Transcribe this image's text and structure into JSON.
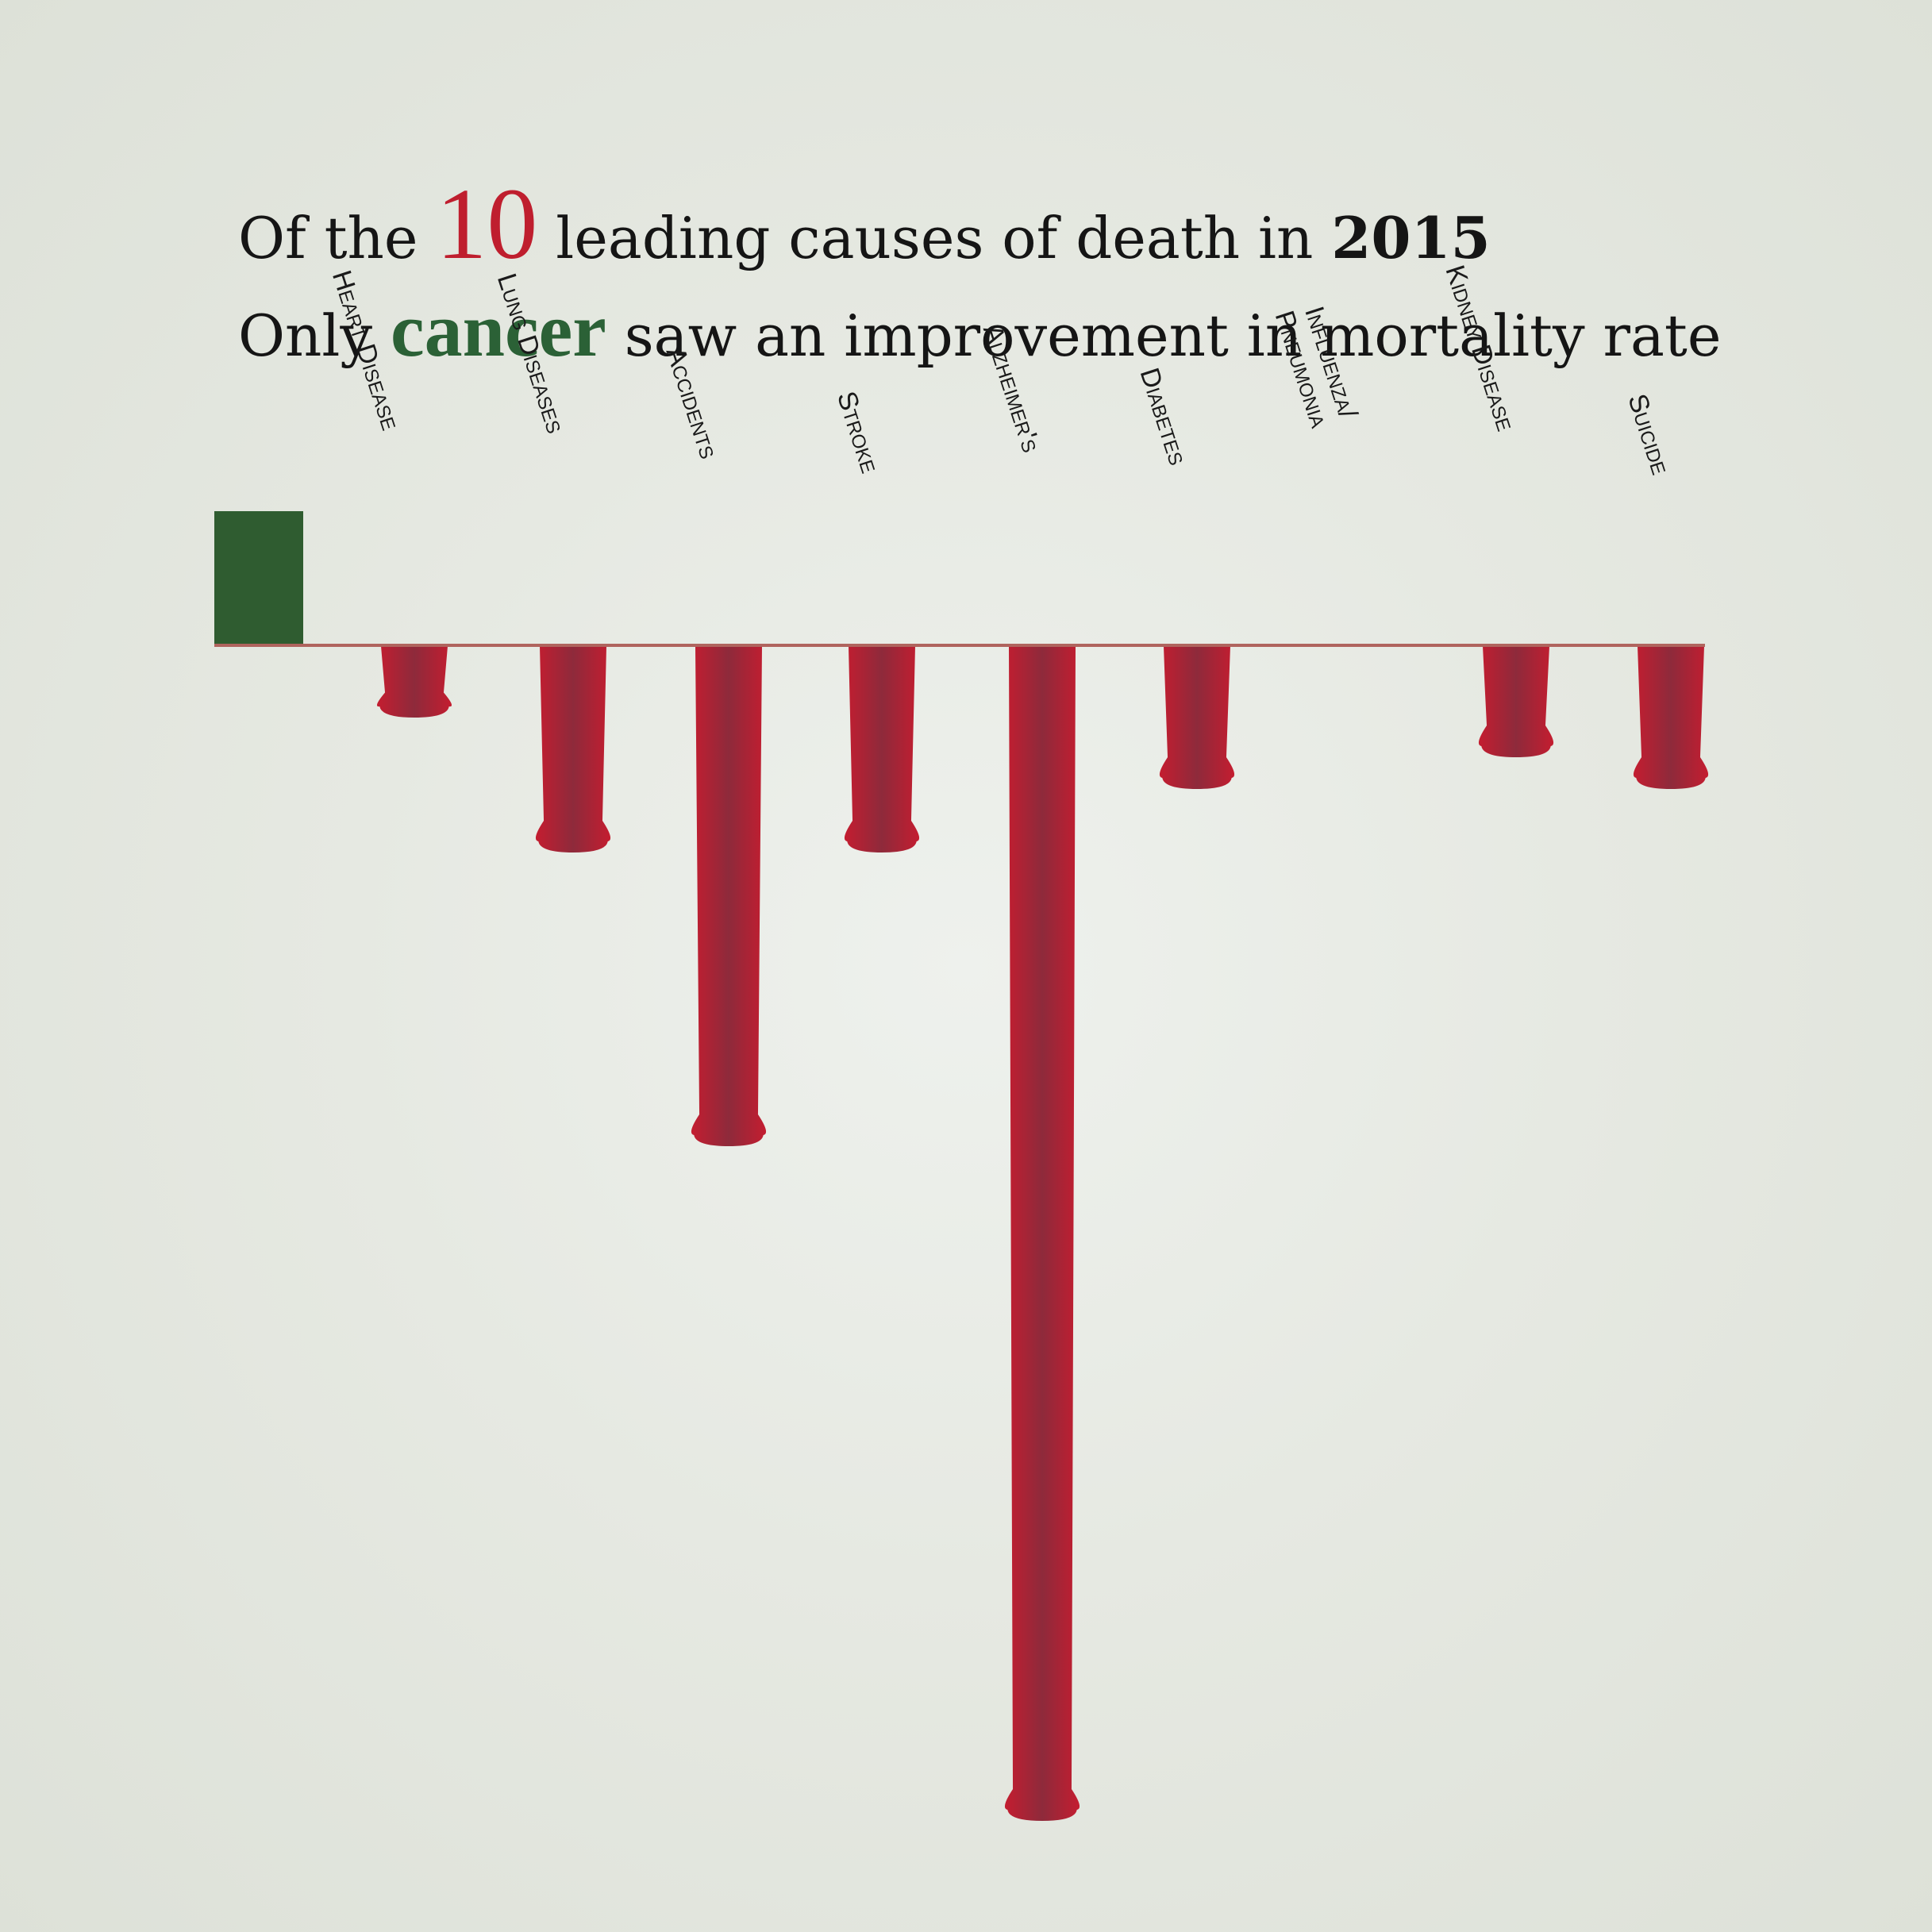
{
  "headline": {
    "line1": {
      "before": "Of the",
      "number": "10",
      "middle": "leading causes of death in",
      "year": "2015"
    },
    "line2": {
      "before": "Only",
      "highlight": "cancer",
      "after": "saw an improvement in mortality rate"
    }
  },
  "colors": {
    "decrease": "#2f5c30",
    "increase": "#bd1c2e",
    "increase_shade": "#8e2a3b",
    "highlight_red": "#bf1e2e",
    "highlight_green": "#2b6136"
  },
  "chart_data": {
    "type": "bar",
    "orientation": "vertical",
    "title": "",
    "xlabel": "",
    "ylabel": "",
    "axis_labels_shown": false,
    "categories": [
      "",
      "Heart Disease",
      "Lung Diseases",
      "Accidents",
      "Stroke",
      "Alzheimer's",
      "Diabetes",
      "Influenza/ Pneumonia",
      "Kidney Disease",
      "Suicide"
    ],
    "values": [
      -1.7,
      0.9,
      2.6,
      6.3,
      2.6,
      14.8,
      1.8,
      0.0,
      1.4,
      1.8
    ],
    "ylim": [
      -2,
      15
    ],
    "sign_convention": "positive values drawn downward (drip); negative value drawn upward (green block)",
    "grid": false,
    "legend": "none"
  }
}
